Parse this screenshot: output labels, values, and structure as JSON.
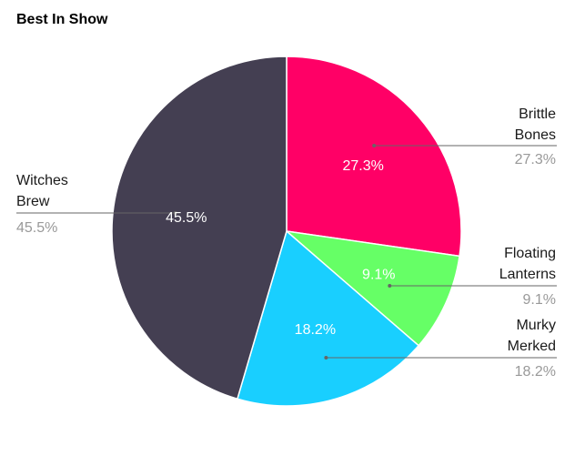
{
  "chart_data": {
    "type": "pie",
    "title": "Best In Show",
    "slices": [
      {
        "name_lines": [
          "Brittle",
          "Bones"
        ],
        "value": 27.3,
        "label": "27.3%",
        "color": "#FF0066"
      },
      {
        "name_lines": [
          "Floating",
          "Lanterns"
        ],
        "value": 9.1,
        "label": "9.1%",
        "color": "#66FF66"
      },
      {
        "name_lines": [
          "Murky",
          "Merked"
        ],
        "value": 18.2,
        "label": "18.2%",
        "color": "#19CFFF"
      },
      {
        "name_lines": [
          "Witches",
          "Brew"
        ],
        "value": 45.5,
        "label": "45.5%",
        "color": "#443F52"
      }
    ]
  }
}
